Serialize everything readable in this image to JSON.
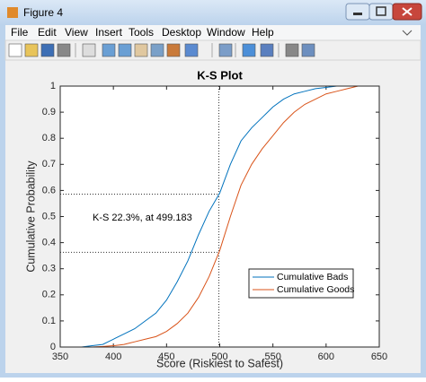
{
  "window": {
    "title": "Figure 4",
    "menu": [
      "File",
      "Edit",
      "View",
      "Insert",
      "Tools",
      "Desktop",
      "Window",
      "Help"
    ]
  },
  "chart_data": {
    "type": "line",
    "title": "K-S Plot",
    "x_label": "Score (Riskiest to Safest)",
    "y_label": "Cumulative Probability",
    "x": [
      370,
      380,
      390,
      400,
      410,
      420,
      430,
      440,
      450,
      460,
      470,
      480,
      490,
      500,
      510,
      520,
      530,
      540,
      550,
      560,
      570,
      580,
      590,
      600,
      610,
      620,
      630,
      640
    ],
    "series": [
      {
        "name": "Cumulative Bads",
        "color": "#0072bd",
        "values": [
          0,
          0.005,
          0.01,
          0.03,
          0.05,
          0.07,
          0.1,
          0.13,
          0.18,
          0.25,
          0.33,
          0.43,
          0.52,
          0.59,
          0.7,
          0.79,
          0.84,
          0.88,
          0.92,
          0.95,
          0.97,
          0.98,
          0.99,
          0.995,
          1,
          1,
          1,
          1
        ]
      },
      {
        "name": "Cumulative Goods",
        "color": "#d95319",
        "values": [
          0,
          0,
          0.002,
          0.005,
          0.01,
          0.02,
          0.03,
          0.04,
          0.06,
          0.09,
          0.13,
          0.19,
          0.27,
          0.37,
          0.5,
          0.62,
          0.7,
          0.76,
          0.81,
          0.86,
          0.9,
          0.93,
          0.95,
          0.97,
          0.98,
          0.99,
          1,
          1
        ]
      }
    ],
    "annotation": "K-S 22.3%, at 499.183",
    "ks_x": 499.183,
    "ks_y": [
      0.586,
      0.363
    ],
    "xlim": [
      350,
      650
    ],
    "ylim": [
      0,
      1
    ],
    "xticks": [
      350,
      400,
      450,
      500,
      550,
      600,
      650
    ],
    "yticks": [
      0,
      0.1,
      0.2,
      0.3,
      0.4,
      0.5,
      0.6,
      0.7,
      0.8,
      0.9,
      1
    ],
    "legend": "southeast"
  }
}
